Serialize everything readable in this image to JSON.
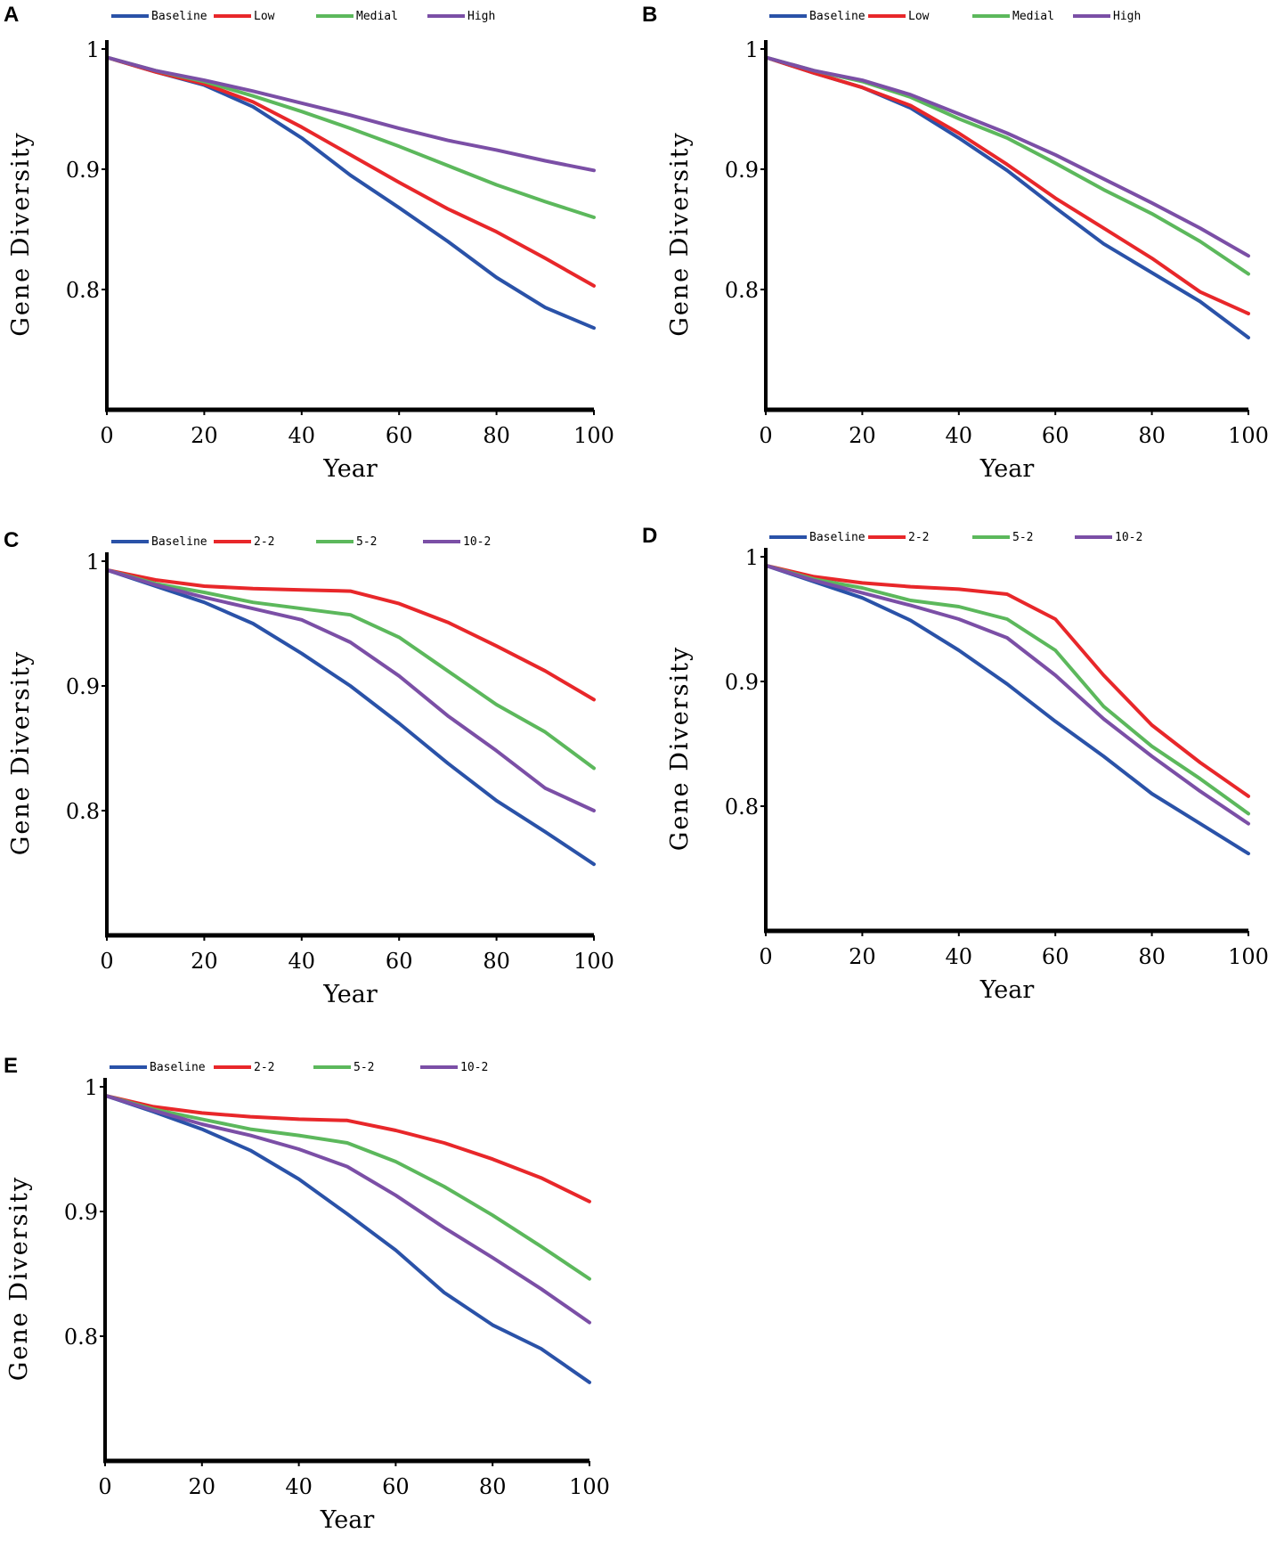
{
  "figure": {
    "colors": {
      "baseline": "#2a52a8",
      "red": "#e8272a",
      "green": "#5cb85c",
      "purple": "#7b4fa6"
    }
  },
  "chart_data": [
    {
      "panel": "A",
      "type": "line",
      "xlabel": "Year",
      "ylabel": "Gene Diversity",
      "xlim": [
        0,
        100
      ],
      "ylim": [
        0.7,
        1.0
      ],
      "xticks": [
        "0",
        "20",
        "40",
        "60",
        "80",
        "100"
      ],
      "yticks": [
        {
          "v": 1.0,
          "label": "1"
        },
        {
          "v": 0.9,
          "label": "0.9"
        },
        {
          "v": 0.8,
          "label": "0.8"
        }
      ],
      "legend_position": "top",
      "x": [
        0,
        10,
        20,
        30,
        40,
        50,
        60,
        70,
        80,
        90,
        100
      ],
      "series": [
        {
          "name": "Baseline",
          "color": "#2a52a8",
          "values": [
            0.993,
            0.981,
            0.97,
            0.952,
            0.926,
            0.895,
            0.868,
            0.84,
            0.81,
            0.785,
            0.768
          ]
        },
        {
          "name": "Low",
          "color": "#e8272a",
          "values": [
            0.993,
            0.981,
            0.971,
            0.956,
            0.935,
            0.912,
            0.889,
            0.867,
            0.848,
            0.826,
            0.803
          ]
        },
        {
          "name": "Medial",
          "color": "#5cb85c",
          "values": [
            0.993,
            0.982,
            0.973,
            0.961,
            0.948,
            0.934,
            0.919,
            0.903,
            0.887,
            0.873,
            0.86
          ]
        },
        {
          "name": "High",
          "color": "#7b4fa6",
          "values": [
            0.993,
            0.982,
            0.974,
            0.965,
            0.955,
            0.945,
            0.934,
            0.924,
            0.916,
            0.907,
            0.899
          ]
        }
      ]
    },
    {
      "panel": "B",
      "type": "line",
      "xlabel": "Year",
      "ylabel": "Gene Diversity",
      "xlim": [
        0,
        100
      ],
      "ylim": [
        0.7,
        1.0
      ],
      "xticks": [
        "0",
        "20",
        "40",
        "60",
        "80",
        "100"
      ],
      "yticks": [
        {
          "v": 1.0,
          "label": "1"
        },
        {
          "v": 0.9,
          "label": "0.9"
        },
        {
          "v": 0.8,
          "label": "0.8"
        }
      ],
      "legend_position": "top",
      "x": [
        0,
        10,
        20,
        30,
        40,
        50,
        60,
        70,
        80,
        90,
        100
      ],
      "series": [
        {
          "name": "Baseline",
          "color": "#2a52a8",
          "values": [
            0.993,
            0.98,
            0.968,
            0.951,
            0.926,
            0.899,
            0.868,
            0.838,
            0.814,
            0.79,
            0.76
          ]
        },
        {
          "name": "Low",
          "color": "#e8272a",
          "values": [
            0.993,
            0.98,
            0.968,
            0.953,
            0.93,
            0.904,
            0.876,
            0.851,
            0.826,
            0.798,
            0.78
          ]
        },
        {
          "name": "Medial",
          "color": "#5cb85c",
          "values": [
            0.993,
            0.982,
            0.973,
            0.96,
            0.942,
            0.926,
            0.905,
            0.883,
            0.863,
            0.84,
            0.813
          ]
        },
        {
          "name": "High",
          "color": "#7b4fa6",
          "values": [
            0.993,
            0.982,
            0.974,
            0.962,
            0.946,
            0.93,
            0.912,
            0.892,
            0.872,
            0.851,
            0.828
          ]
        }
      ]
    },
    {
      "panel": "C",
      "type": "line",
      "xlabel": "Year",
      "ylabel": "Gene Diversity",
      "xlim": [
        0,
        100
      ],
      "ylim": [
        0.7,
        1.0
      ],
      "xticks": [
        "0",
        "20",
        "40",
        "60",
        "80",
        "100"
      ],
      "yticks": [
        {
          "v": 1.0,
          "label": "1"
        },
        {
          "v": 0.9,
          "label": "0.9"
        },
        {
          "v": 0.8,
          "label": "0.8"
        }
      ],
      "legend_position": "top",
      "x": [
        0,
        10,
        20,
        30,
        40,
        50,
        60,
        70,
        80,
        90,
        100
      ],
      "series": [
        {
          "name": "Baseline",
          "color": "#2a52a8",
          "values": [
            0.993,
            0.98,
            0.967,
            0.95,
            0.926,
            0.9,
            0.87,
            0.838,
            0.808,
            0.783,
            0.757
          ]
        },
        {
          "name": "2-2",
          "color": "#e8272a",
          "values": [
            0.993,
            0.985,
            0.98,
            0.978,
            0.977,
            0.976,
            0.966,
            0.951,
            0.932,
            0.912,
            0.889
          ]
        },
        {
          "name": "5-2",
          "color": "#5cb85c",
          "values": [
            0.993,
            0.982,
            0.975,
            0.967,
            0.962,
            0.957,
            0.939,
            0.912,
            0.885,
            0.863,
            0.834
          ]
        },
        {
          "name": "10-2",
          "color": "#7b4fa6",
          "values": [
            0.993,
            0.981,
            0.971,
            0.962,
            0.953,
            0.935,
            0.908,
            0.876,
            0.848,
            0.818,
            0.8
          ]
        }
      ]
    },
    {
      "panel": "D",
      "type": "line",
      "xlabel": "Year",
      "ylabel": "Gene Diversity",
      "xlim": [
        0,
        100
      ],
      "ylim": [
        0.7,
        1.0
      ],
      "xticks": [
        "0",
        "20",
        "40",
        "60",
        "80",
        "100"
      ],
      "yticks": [
        {
          "v": 1.0,
          "label": "1"
        },
        {
          "v": 0.9,
          "label": "0.9"
        },
        {
          "v": 0.8,
          "label": "0.8"
        }
      ],
      "legend_position": "top",
      "x": [
        0,
        10,
        20,
        30,
        40,
        50,
        60,
        70,
        80,
        90,
        100
      ],
      "series": [
        {
          "name": "Baseline",
          "color": "#2a52a8",
          "values": [
            0.993,
            0.98,
            0.967,
            0.949,
            0.925,
            0.898,
            0.868,
            0.84,
            0.81,
            0.786,
            0.762
          ]
        },
        {
          "name": "2-2",
          "color": "#e8272a",
          "values": [
            0.993,
            0.984,
            0.979,
            0.976,
            0.974,
            0.97,
            0.95,
            0.905,
            0.865,
            0.835,
            0.808
          ]
        },
        {
          "name": "5-2",
          "color": "#5cb85c",
          "values": [
            0.993,
            0.982,
            0.975,
            0.965,
            0.96,
            0.95,
            0.925,
            0.88,
            0.848,
            0.822,
            0.794
          ]
        },
        {
          "name": "10-2",
          "color": "#7b4fa6",
          "values": [
            0.993,
            0.981,
            0.971,
            0.961,
            0.95,
            0.935,
            0.905,
            0.87,
            0.84,
            0.812,
            0.786
          ]
        }
      ]
    },
    {
      "panel": "E",
      "type": "line",
      "xlabel": "Year",
      "ylabel": "Gene Diversity",
      "xlim": [
        0,
        100
      ],
      "ylim": [
        0.7,
        1.0
      ],
      "xticks": [
        "0",
        "20",
        "40",
        "60",
        "80",
        "100"
      ],
      "yticks": [
        {
          "v": 1.0,
          "label": "1"
        },
        {
          "v": 0.9,
          "label": "0.9"
        },
        {
          "v": 0.8,
          "label": "0.8"
        }
      ],
      "legend_position": "top",
      "x": [
        0,
        10,
        20,
        30,
        40,
        50,
        60,
        70,
        80,
        90,
        100
      ],
      "series": [
        {
          "name": "Baseline",
          "color": "#2a52a8",
          "values": [
            0.993,
            0.98,
            0.966,
            0.949,
            0.926,
            0.898,
            0.869,
            0.835,
            0.809,
            0.79,
            0.763
          ]
        },
        {
          "name": "2-2",
          "color": "#e8272a",
          "values": [
            0.993,
            0.984,
            0.979,
            0.976,
            0.974,
            0.973,
            0.965,
            0.955,
            0.942,
            0.927,
            0.908
          ]
        },
        {
          "name": "5-2",
          "color": "#5cb85c",
          "values": [
            0.993,
            0.982,
            0.974,
            0.966,
            0.961,
            0.955,
            0.94,
            0.92,
            0.897,
            0.872,
            0.846
          ]
        },
        {
          "name": "10-2",
          "color": "#7b4fa6",
          "values": [
            0.993,
            0.981,
            0.97,
            0.961,
            0.95,
            0.936,
            0.913,
            0.887,
            0.863,
            0.838,
            0.811
          ]
        }
      ]
    }
  ]
}
